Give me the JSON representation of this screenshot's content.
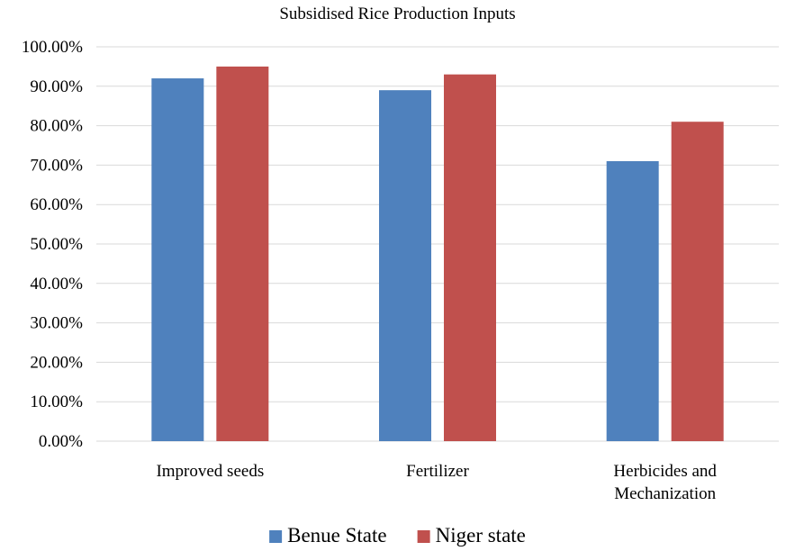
{
  "chart_data": {
    "type": "bar",
    "title": "Subsidised Rice Production Inputs",
    "xlabel": "",
    "ylabel": "",
    "categories": [
      [
        "Improved seeds"
      ],
      [
        "Fertilizer"
      ],
      [
        "Herbicides and",
        "Mechanization"
      ]
    ],
    "series": [
      {
        "name": "Benue State",
        "color": "#4F81BD",
        "values": [
          92,
          89,
          71
        ]
      },
      {
        "name": "Niger state",
        "color": "#C0504D",
        "values": [
          95,
          93,
          81
        ]
      }
    ],
    "ylim": [
      0,
      100
    ],
    "yticks": [
      0,
      10,
      20,
      30,
      40,
      50,
      60,
      70,
      80,
      90,
      100
    ],
    "ytick_labels": [
      "0.00%",
      "10.00%",
      "20.00%",
      "30.00%",
      "40.00%",
      "50.00%",
      "60.00%",
      "70.00%",
      "80.00%",
      "90.00%",
      "100.00%"
    ],
    "grid": true,
    "legend_position": "bottom"
  }
}
